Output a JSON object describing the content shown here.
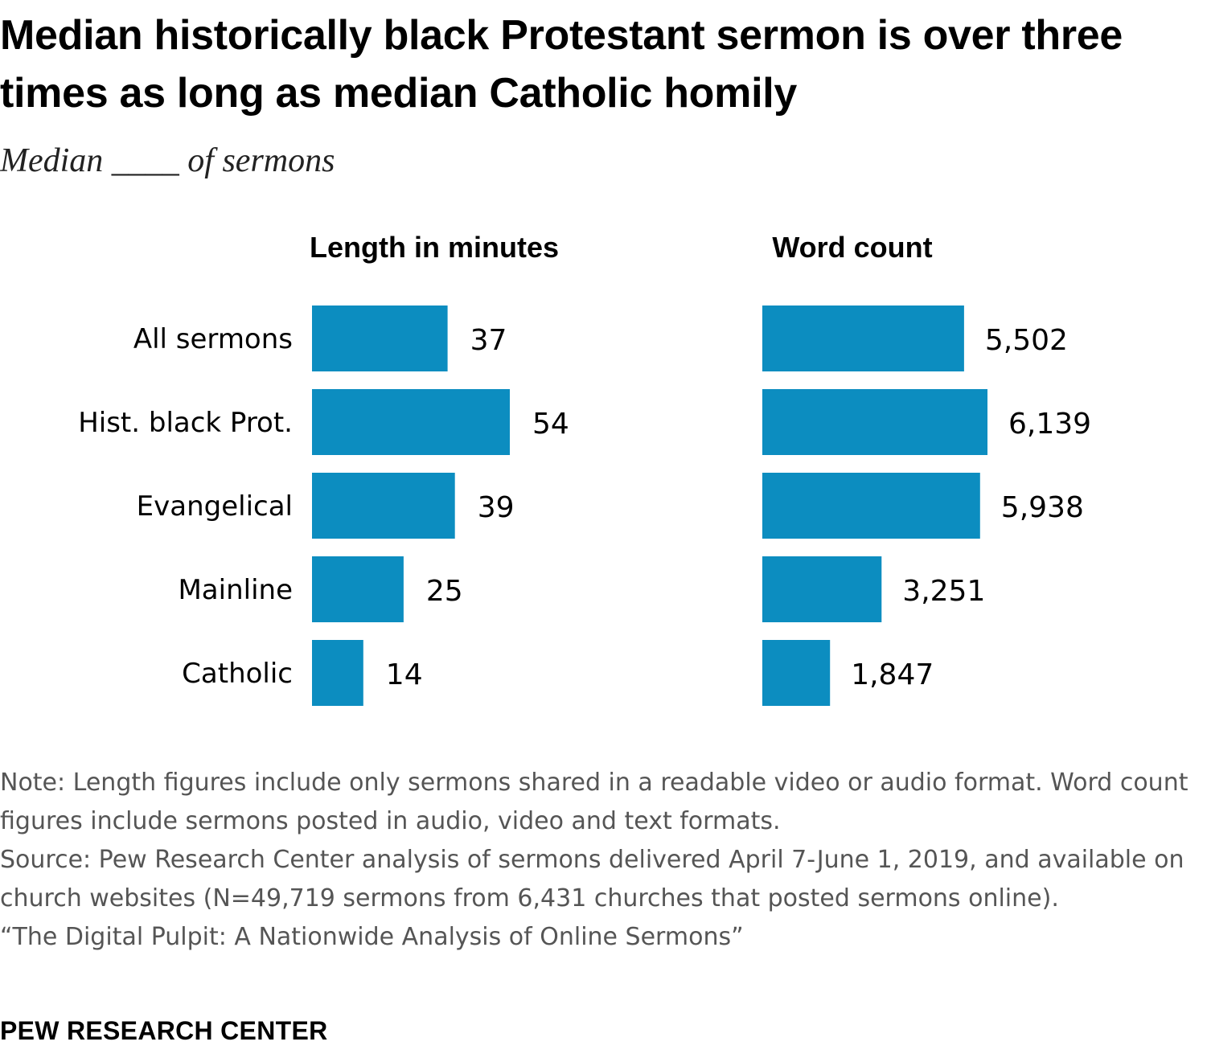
{
  "title": "Median historically black Protestant sermon is over three times as long as median Catholic homily",
  "subtitle": "Median ____ of sermons",
  "colors": {
    "bar": "#0c8dc0",
    "text": "#000000",
    "note": "#555555"
  },
  "chart_data": [
    {
      "type": "bar",
      "orientation": "horizontal",
      "title": "Length in minutes",
      "categories": [
        "All sermons",
        "Hist. black Prot.",
        "Evangelical",
        "Mainline",
        "Catholic"
      ],
      "values": [
        37,
        54,
        39,
        25,
        14
      ],
      "value_labels": [
        "37",
        "54",
        "39",
        "25",
        "14"
      ]
    },
    {
      "type": "bar",
      "orientation": "horizontal",
      "title": "Word count",
      "categories": [
        "All sermons",
        "Hist. black Prot.",
        "Evangelical",
        "Mainline",
        "Catholic"
      ],
      "values": [
        5502,
        6139,
        5938,
        3251,
        1847
      ],
      "value_labels": [
        "5,502",
        "6,139",
        "5,938",
        "3,251",
        "1,847"
      ]
    }
  ],
  "notes": {
    "note": "Note: Length figures include only sermons shared in a readable video or audio format. Word count figures include sermons posted in audio, video and text formats.",
    "source": "Source: Pew Research Center analysis of sermons delivered April 7-June 1, 2019, and available on church websites (N=49,719 sermons from 6,431 churches that posted sermons online).",
    "report": "“The Digital Pulpit: A Nationwide Analysis of Online Sermons”"
  },
  "org": "PEW RESEARCH CENTER"
}
